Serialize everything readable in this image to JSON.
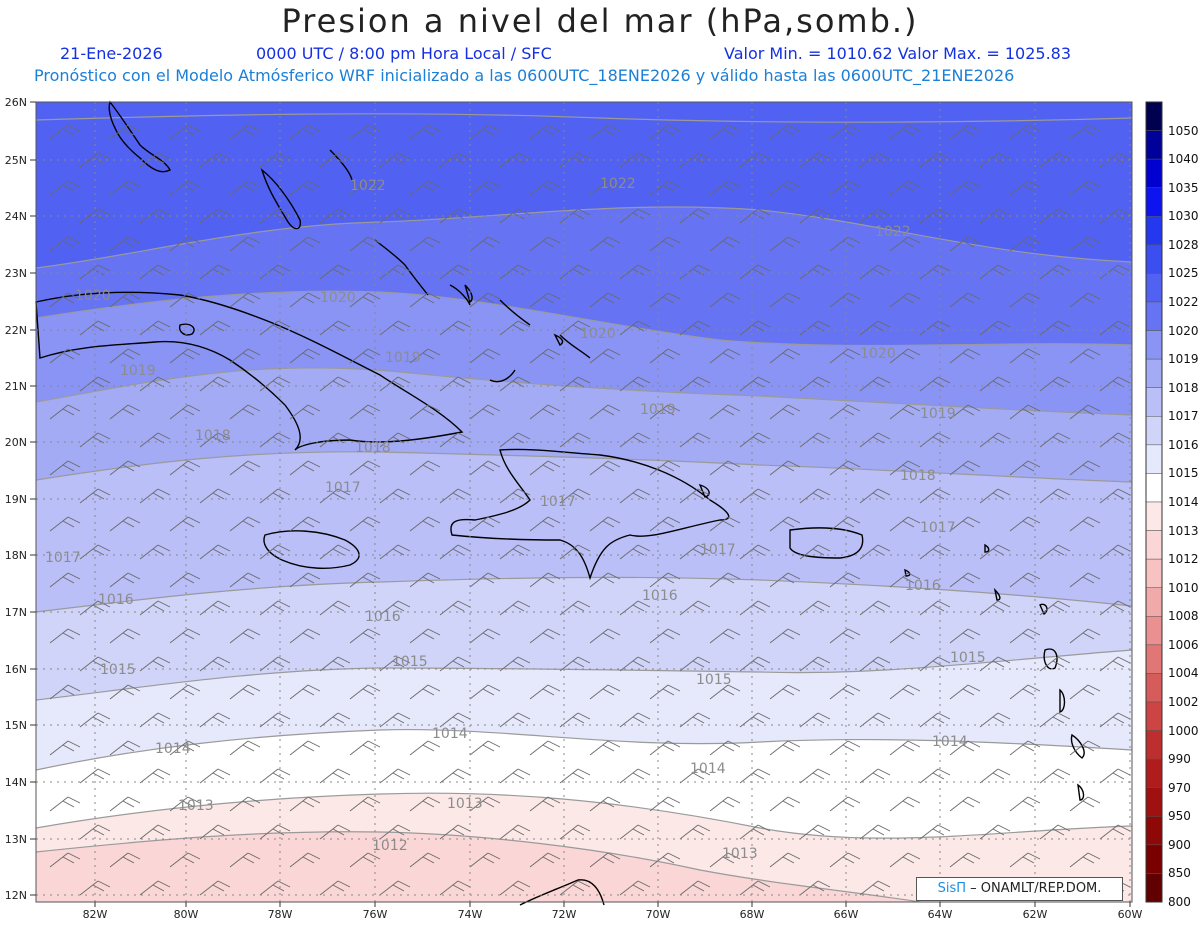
{
  "header": {
    "title": "Presion a nivel del mar (hPa,somb.)",
    "date": "21-Ene-2026",
    "time_info": "0000 UTC / 8:00 pm Hora Local / SFC",
    "min_max": "Valor Min. = 1010.62  Valor Max. = 1025.83",
    "model_info": "Pronóstico con el Modelo Atmósferico WRF inicializado a las 0600UTC_18ENE2026 y válido hasta las  0600UTC_21ENE2026"
  },
  "credit": {
    "brand": "SisΠ",
    "text": "– ONAMLT/REP.DOM."
  },
  "axes": {
    "lat_labels": [
      "26N",
      "25N",
      "24N",
      "23N",
      "22N",
      "21N",
      "20N",
      "19N",
      "18N",
      "17N",
      "16N",
      "15N",
      "14N",
      "13N",
      "12N"
    ],
    "lon_labels": [
      "82W",
      "80W",
      "78W",
      "76W",
      "74W",
      "72W",
      "70W",
      "68W",
      "66W",
      "64W",
      "62W",
      "60W"
    ]
  },
  "legend": {
    "levels": [
      "1050",
      "1040",
      "1035",
      "1030",
      "1028",
      "1025",
      "1022",
      "1020",
      "1019",
      "1018",
      "1017",
      "1016",
      "1015",
      "1014",
      "1013",
      "1012",
      "1010",
      "1008",
      "1006",
      "1004",
      "1002",
      "1000",
      "990",
      "970",
      "950",
      "900",
      "850",
      "800"
    ],
    "colors": [
      "#000050",
      "#00009a",
      "#0000d0",
      "#0d14f0",
      "#2438ef",
      "#3b4ef0",
      "#5161f2",
      "#6674f3",
      "#8a94f4",
      "#a3abf5",
      "#babff7",
      "#d0d4f9",
      "#e6e8fc",
      "#ffffff",
      "#fde8e8",
      "#fbd6d6",
      "#f7c2c2",
      "#f1aaaa",
      "#ea9090",
      "#e07676",
      "#d65c5c",
      "#cc4444",
      "#bf2e2e",
      "#b01c1c",
      "#a01010",
      "#8e0808",
      "#7a0000",
      "#600000"
    ]
  },
  "contours": [
    {
      "label": "1022"
    },
    {
      "label": "1020"
    },
    {
      "label": "1019"
    },
    {
      "label": "1018"
    },
    {
      "label": "1017"
    },
    {
      "label": "1016"
    },
    {
      "label": "1015"
    },
    {
      "label": "1014"
    },
    {
      "label": "1013"
    },
    {
      "label": "1012"
    }
  ],
  "contour_labels_text": [
    "1022",
    "1022",
    "1022",
    "1020",
    "1020",
    "1020",
    "1020",
    "1019",
    "1019",
    "1019",
    "1019",
    "1018",
    "1018",
    "1018",
    "1017",
    "1017",
    "1017",
    "1017",
    "1017",
    "1016",
    "1016",
    "1016",
    "1016",
    "1015",
    "1015",
    "1015",
    "1015",
    "1014",
    "1014",
    "1014",
    "1014",
    "1013",
    "1013",
    "1013",
    "1012"
  ],
  "colors": {
    "title_blue": "#1530e0",
    "info_blue": "#1a7fd8"
  }
}
